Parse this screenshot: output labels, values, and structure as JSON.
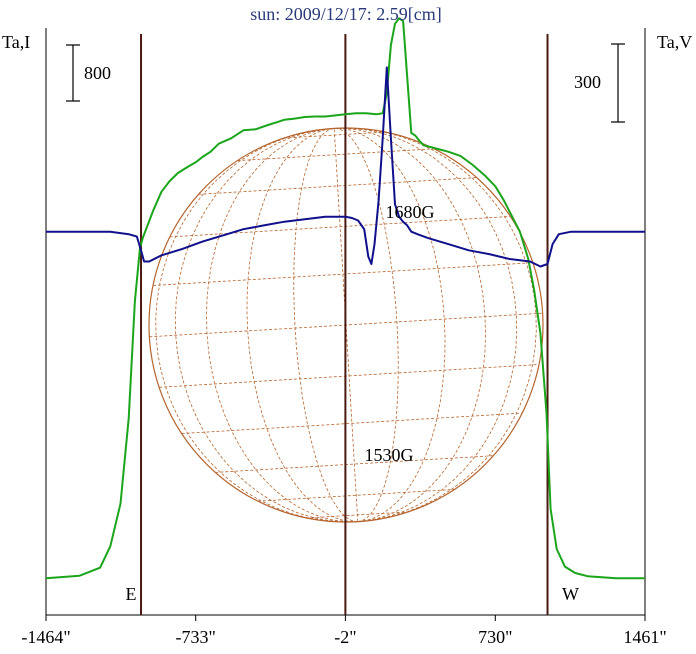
{
  "chart_data": {
    "type": "line",
    "title": "sun: 2009/12/17: 2.59[cm]",
    "ylabel_left": "Ta,I",
    "ylabel_right": "Ta,V",
    "scale_left": "800",
    "scale_right": "300",
    "x_tick_labels": [
      "-1464\"",
      "-733\"",
      "-2\"",
      "730\"",
      "1461\""
    ],
    "x_ticks": [
      -1464,
      -733,
      -2,
      730,
      1461
    ],
    "xlim": [
      -1464,
      1461
    ],
    "limb_markers": [
      {
        "label": "E",
        "x": -1000
      },
      {
        "label": "W",
        "x": 985
      }
    ],
    "center_line_x": -2,
    "annotations": [
      {
        "text": "1680G",
        "x": 120,
        "series": "I"
      },
      {
        "text": "1530G",
        "x": 120,
        "series": "V"
      }
    ],
    "series": [
      {
        "name": "I",
        "color": "#1aa51a",
        "ylim": [
          -50,
          1000
        ],
        "x": [
          -1464,
          -1300,
          -1200,
          -1150,
          -1100,
          -1060,
          -1030,
          -1005,
          -990,
          -970,
          -940,
          -900,
          -860,
          -820,
          -770,
          -733,
          -700,
          -660,
          -620,
          -560,
          -500,
          -440,
          -380,
          -330,
          -300,
          -250,
          -200,
          -150,
          -100,
          -50,
          -2,
          50,
          100,
          150,
          180,
          200,
          220,
          240,
          260,
          280,
          300,
          320,
          340,
          360,
          380,
          420,
          450,
          500,
          560,
          620,
          680,
          730,
          770,
          810,
          850,
          890,
          920,
          950,
          980,
          1000,
          1030,
          1070,
          1120,
          1180,
          1250,
          1320,
          1400,
          1461
        ],
        "values": [
          0,
          5,
          20,
          60,
          140,
          300,
          520,
          620,
          640,
          660,
          690,
          725,
          745,
          760,
          772,
          780,
          790,
          800,
          815,
          825,
          840,
          842,
          850,
          856,
          860,
          862,
          865,
          866,
          866,
          868,
          870,
          872,
          872,
          870,
          872,
          910,
          1000,
          1040,
          1050,
          1045,
          940,
          835,
          830,
          820,
          812,
          808,
          805,
          800,
          792,
          775,
          755,
          735,
          710,
          680,
          650,
          600,
          540,
          460,
          310,
          130,
          55,
          22,
          10,
          4,
          2,
          0,
          0,
          0
        ]
      },
      {
        "name": "V",
        "color": "#10108c",
        "ylim": [
          -300,
          150
        ],
        "x": [
          -1464,
          -1300,
          -1150,
          -1060,
          -1020,
          -1000,
          -985,
          -960,
          -900,
          -800,
          -700,
          -600,
          -500,
          -400,
          -300,
          -200,
          -100,
          -2,
          30,
          60,
          90,
          110,
          125,
          140,
          160,
          180,
          200,
          220,
          240,
          260,
          280,
          300,
          320,
          350,
          400,
          500,
          600,
          700,
          800,
          900,
          950,
          985,
          1010,
          1040,
          1100,
          1200,
          1300,
          1461
        ],
        "values": [
          0,
          0,
          0,
          -2,
          -4,
          -15,
          -24,
          -24,
          -19,
          -14,
          -8,
          -3,
          2,
          5,
          8,
          10,
          12,
          12,
          11,
          9,
          2,
          -20,
          -26,
          -10,
          25,
          75,
          132,
          75,
          22,
          12,
          8,
          5,
          0,
          -2,
          -5,
          -10,
          -15,
          -18,
          -22,
          -24,
          -28,
          -26,
          -10,
          -2,
          0,
          0,
          0,
          0
        ]
      }
    ]
  }
}
